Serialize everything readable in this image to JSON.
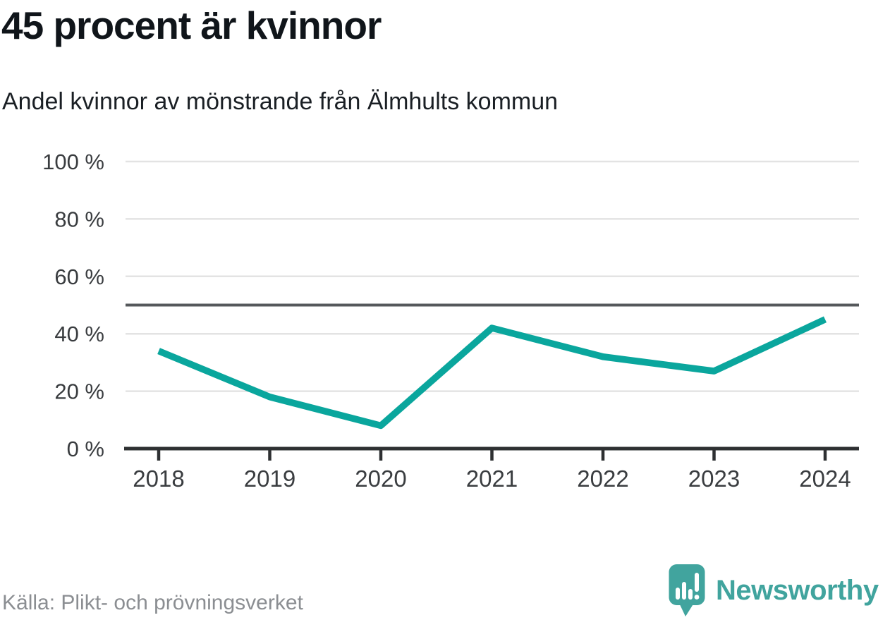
{
  "header": {
    "title": "45 procent är kvinnor",
    "subtitle": "Andel kvinnor av mönstrande från Älmhults kommun"
  },
  "footer": {
    "source": "Källa: Plikt- och prövningsverket",
    "logo_text": "Newsworthy"
  },
  "colors": {
    "accent_line": "#0aa69d",
    "grid": "#e3e3e3",
    "reference_line": "#55585b",
    "axis": "#2e3032",
    "axis_text": "#3a3d40",
    "title_text": "#10151a",
    "subtitle_text": "#1a1f24",
    "source_text": "#8b8e92",
    "logo_teal": "#41a49e"
  },
  "chart_data": {
    "type": "line",
    "title": "45 procent är kvinnor",
    "subtitle": "Andel kvinnor av mönstrande från Älmhults kommun",
    "categories": [
      "2018",
      "2019",
      "2020",
      "2021",
      "2022",
      "2023",
      "2024"
    ],
    "values": [
      34,
      18,
      8,
      42,
      32,
      27,
      45
    ],
    "unit": "%",
    "xlabel": "",
    "ylabel": "",
    "ylim": [
      0,
      100
    ],
    "y_ticks": [
      {
        "value": 100,
        "label": "100 %"
      },
      {
        "value": 80,
        "label": "80 %"
      },
      {
        "value": 60,
        "label": "60 %"
      },
      {
        "value": 40,
        "label": "40 %"
      },
      {
        "value": 20,
        "label": "20 %"
      },
      {
        "value": 0,
        "label": "0 %"
      }
    ],
    "reference_line": 50,
    "grid": true,
    "legend": false,
    "source": "Källa: Plikt- och prövningsverket"
  }
}
